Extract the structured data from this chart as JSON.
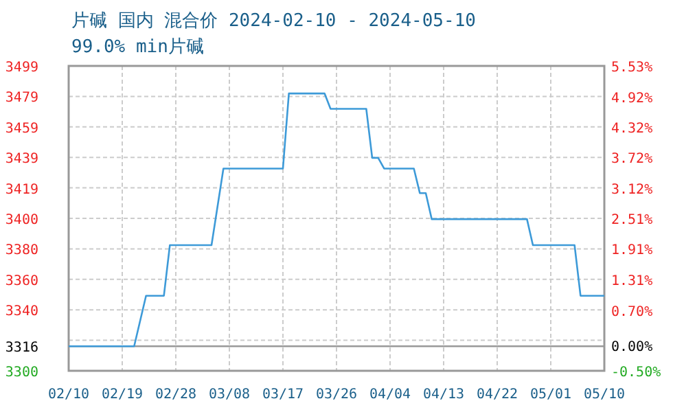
{
  "chart_data": {
    "type": "line",
    "title": "片碱 国内 混合价 2024-02-10 - 2024-05-10",
    "subtitle": "99.0% min片碱",
    "x": [
      "2024-02-10",
      "2024-02-21",
      "2024-02-23",
      "2024-02-26",
      "2024-02-27",
      "2024-03-05",
      "2024-03-07",
      "2024-03-17",
      "2024-03-18",
      "2024-03-24",
      "2024-03-25",
      "2024-03-31",
      "2024-04-01",
      "2024-04-02",
      "2024-04-03",
      "2024-04-08",
      "2024-04-09",
      "2024-04-10",
      "2024-04-11",
      "2024-04-27",
      "2024-04-28",
      "2024-05-05",
      "2024-05-06",
      "2024-05-10"
    ],
    "series": [
      {
        "color": "#3d9ad8",
        "values": [
          3316,
          3316,
          3349,
          3349,
          3382,
          3382,
          3432,
          3432,
          3481,
          3481,
          3471,
          3471,
          3439,
          3439,
          3432,
          3432,
          3416,
          3416,
          3399,
          3399,
          3382,
          3382,
          3349,
          3349
        ]
      }
    ],
    "xlim": [
      "2024-02-10",
      "2024-05-10"
    ],
    "xticks": [
      {
        "value": "2024-02-10",
        "label": "02/10"
      },
      {
        "value": "2024-02-19",
        "label": "02/19"
      },
      {
        "value": "2024-02-28",
        "label": "02/28"
      },
      {
        "value": "2024-03-08",
        "label": "03/08"
      },
      {
        "value": "2024-03-17",
        "label": "03/17"
      },
      {
        "value": "2024-03-26",
        "label": "03/26"
      },
      {
        "value": "2024-04-04",
        "label": "04/04"
      },
      {
        "value": "2024-04-13",
        "label": "04/13"
      },
      {
        "value": "2024-04-22",
        "label": "04/22"
      },
      {
        "value": "2024-05-01",
        "label": "05/01"
      },
      {
        "value": "2024-05-10",
        "label": "05/10"
      }
    ],
    "ylim": [
      3300,
      3499
    ],
    "yticks": [
      3300,
      {
        "value": 3319.9,
        "label": null
      },
      3316,
      {
        "value": 3339.8,
        "label": "3340"
      },
      {
        "value": 3359.7,
        "label": "3360"
      },
      {
        "value": 3379.6,
        "label": "3380"
      },
      {
        "value": 3399.5,
        "label": "3400"
      },
      {
        "value": 3419.4,
        "label": "3419"
      },
      {
        "value": 3439.3,
        "label": "3439"
      },
      {
        "value": 3459.2,
        "label": "3459"
      },
      {
        "value": 3479.1,
        "label": "3479"
      },
      3499
    ],
    "y2lim": [
      -0.5,
      5.53
    ],
    "y2ticks": [
      {
        "value": -0.5,
        "label": "-0.50%"
      },
      {
        "value": 0,
        "label": "0.00%"
      },
      {
        "value": 0.7,
        "label": "0.70%"
      },
      {
        "value": 1.309,
        "label": "1.31%"
      },
      {
        "value": 1.912,
        "label": "1.91%"
      },
      {
        "value": 2.515,
        "label": "2.51%"
      },
      {
        "value": 3.118,
        "label": "3.12%"
      },
      {
        "value": 3.721,
        "label": "3.72%"
      },
      {
        "value": 4.324,
        "label": "4.32%"
      },
      {
        "value": 4.92,
        "label": "4.92%"
      },
      {
        "value": 5.53,
        "label": "5.53%"
      }
    ],
    "ref_lines": [
      {
        "axis": "y",
        "value": 3316,
        "label": null,
        "color": "#999999"
      }
    ],
    "grid": true,
    "marker": "none",
    "line_style": "solid"
  }
}
